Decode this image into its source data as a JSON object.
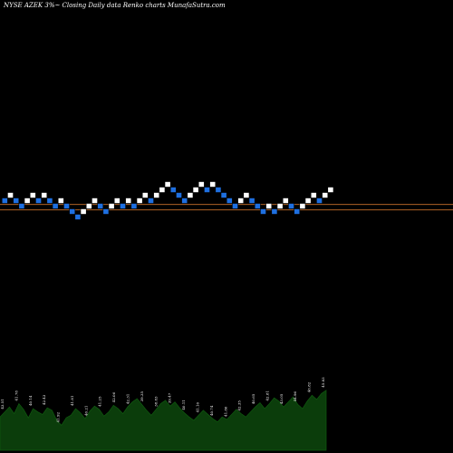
{
  "header": {
    "title": "NYSE AZEK 3%~  Closing Daily data  Renko  charts MunafaSutra.com"
  },
  "colors": {
    "background": "#000000",
    "brick_up": "#ffffff",
    "brick_down": "#1e6fe0",
    "brick_edge": "#000000",
    "reference_line": "#c8702a",
    "volume_fill": "#0b3d0b",
    "volume_edge": "#0f5a0f",
    "text": "#ffffff"
  },
  "chart_data": {
    "type": "renko",
    "title": "NYSE AZEK 3%~  Closing Daily data  Renko  charts MunafaSutra.com",
    "brick_size": "3%",
    "ylim": [
      -6,
      6
    ],
    "reference_levels": [
      0,
      -1
    ],
    "bricks": [
      {
        "dir": "down",
        "level": 0
      },
      {
        "dir": "up",
        "level": 1
      },
      {
        "dir": "down",
        "level": 0
      },
      {
        "dir": "down",
        "level": -1
      },
      {
        "dir": "up",
        "level": 0
      },
      {
        "dir": "up",
        "level": 1
      },
      {
        "dir": "down",
        "level": 0
      },
      {
        "dir": "up",
        "level": 1
      },
      {
        "dir": "down",
        "level": 0
      },
      {
        "dir": "down",
        "level": -1
      },
      {
        "dir": "up",
        "level": 0
      },
      {
        "dir": "down",
        "level": -1
      },
      {
        "dir": "down",
        "level": -2
      },
      {
        "dir": "down",
        "level": -3
      },
      {
        "dir": "up",
        "level": -2
      },
      {
        "dir": "up",
        "level": -1
      },
      {
        "dir": "up",
        "level": 0
      },
      {
        "dir": "down",
        "level": -1
      },
      {
        "dir": "down",
        "level": -2
      },
      {
        "dir": "up",
        "level": -1
      },
      {
        "dir": "up",
        "level": 0
      },
      {
        "dir": "down",
        "level": -1
      },
      {
        "dir": "up",
        "level": 0
      },
      {
        "dir": "down",
        "level": -1
      },
      {
        "dir": "up",
        "level": 0
      },
      {
        "dir": "up",
        "level": 1
      },
      {
        "dir": "down",
        "level": 0
      },
      {
        "dir": "up",
        "level": 1
      },
      {
        "dir": "up",
        "level": 2
      },
      {
        "dir": "up",
        "level": 3
      },
      {
        "dir": "down",
        "level": 2
      },
      {
        "dir": "down",
        "level": 1
      },
      {
        "dir": "down",
        "level": 0
      },
      {
        "dir": "up",
        "level": 1
      },
      {
        "dir": "up",
        "level": 2
      },
      {
        "dir": "up",
        "level": 3
      },
      {
        "dir": "down",
        "level": 2
      },
      {
        "dir": "up",
        "level": 3
      },
      {
        "dir": "down",
        "level": 2
      },
      {
        "dir": "down",
        "level": 1
      },
      {
        "dir": "down",
        "level": 0
      },
      {
        "dir": "down",
        "level": -1
      },
      {
        "dir": "up",
        "level": 0
      },
      {
        "dir": "up",
        "level": 1
      },
      {
        "dir": "down",
        "level": 0
      },
      {
        "dir": "down",
        "level": -1
      },
      {
        "dir": "down",
        "level": -2
      },
      {
        "dir": "up",
        "level": -1
      },
      {
        "dir": "down",
        "level": -2
      },
      {
        "dir": "up",
        "level": -1
      },
      {
        "dir": "up",
        "level": 0
      },
      {
        "dir": "down",
        "level": -1
      },
      {
        "dir": "down",
        "level": -2
      },
      {
        "dir": "up",
        "level": -1
      },
      {
        "dir": "up",
        "level": 0
      },
      {
        "dir": "up",
        "level": 1
      },
      {
        "dir": "down",
        "level": 0
      },
      {
        "dir": "up",
        "level": 1
      },
      {
        "dir": "up",
        "level": 2
      }
    ],
    "volume": [
      4.0,
      4.6,
      5.2,
      4.4,
      5.6,
      4.9,
      3.9,
      5.0,
      4.6,
      4.3,
      5.1,
      4.8,
      3.6,
      3.0,
      3.9,
      4.2,
      5.0,
      4.5,
      3.8,
      4.7,
      5.3,
      4.9,
      4.1,
      4.6,
      5.4,
      5.0,
      4.4,
      5.2,
      5.8,
      6.2,
      5.5,
      4.8,
      4.2,
      4.9,
      5.6,
      6.0,
      5.3,
      5.8,
      5.1,
      4.5,
      4.0,
      3.6,
      4.2,
      4.8,
      4.3,
      3.8,
      3.4,
      4.0,
      3.7,
      4.3,
      4.9,
      4.4,
      4.0,
      4.6,
      5.2,
      5.7,
      5.0,
      5.6,
      6.3,
      5.9,
      5.2,
      5.8,
      6.4,
      5.5,
      5.0,
      5.9,
      6.6,
      6.1,
      6.8,
      7.2
    ],
    "volume_labels": [
      "43.51",
      "41.78",
      "40.14",
      "42.43",
      "41.92",
      "41.81",
      "40.21",
      "41.25",
      "42.06",
      "42.31",
      "39.35",
      "38.83",
      "39.47",
      "40.11",
      "41.16",
      "40.74",
      "41.86",
      "42.35",
      "40.65",
      "42.81",
      "43.05",
      "44.96",
      "46.82",
      "45.83"
    ]
  }
}
